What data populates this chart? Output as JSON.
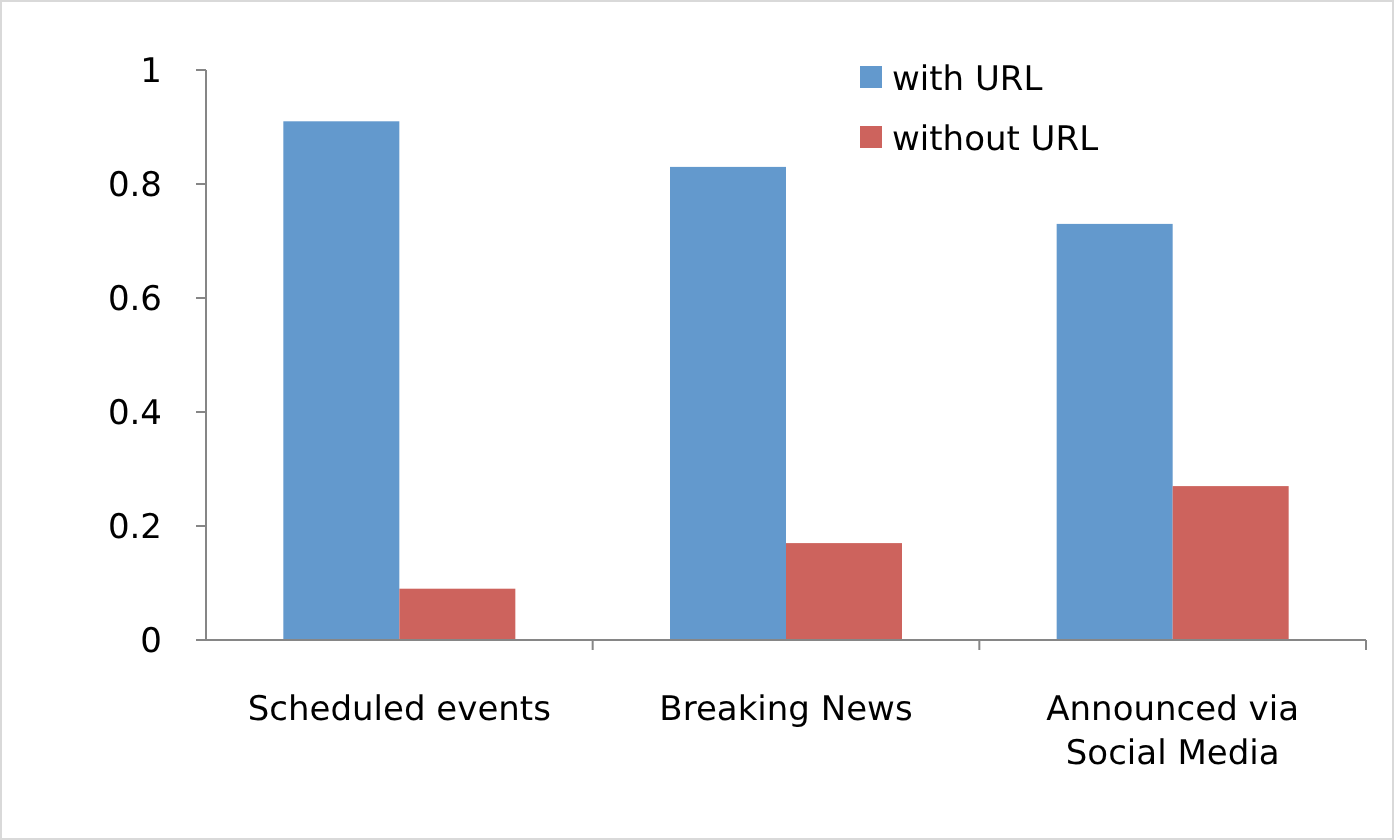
{
  "chart_data": {
    "type": "bar",
    "categories": [
      "Scheduled events",
      "Breaking News",
      "Announced via Social Media"
    ],
    "series": [
      {
        "name": "with URL",
        "color": "#6399cd",
        "values": [
          0.91,
          0.83,
          0.73
        ]
      },
      {
        "name": "without URL",
        "color": "#cd635d",
        "values": [
          0.09,
          0.17,
          0.27
        ]
      }
    ],
    "ylim": [
      0,
      1
    ],
    "yticks": [
      0,
      0.2,
      0.4,
      0.6,
      0.8,
      1
    ],
    "grid": false,
    "legend": "top right"
  }
}
